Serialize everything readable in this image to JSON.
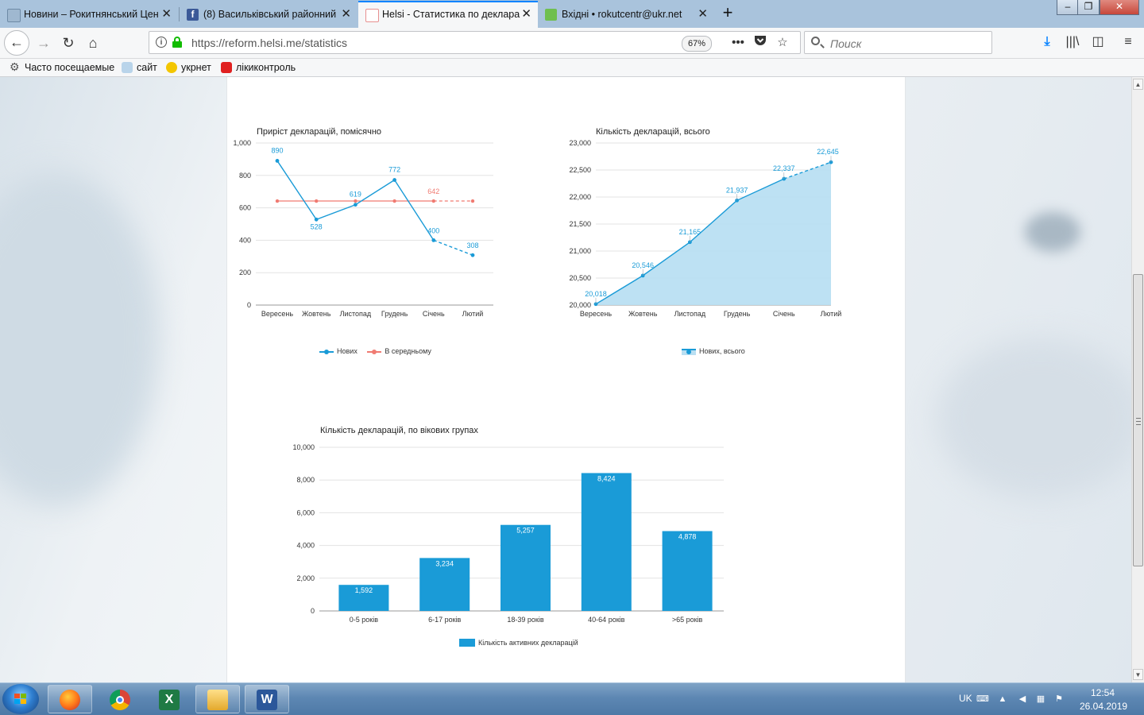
{
  "browser": {
    "tabs": [
      {
        "label": "Новини – Рокитнянський Цен",
        "active": false
      },
      {
        "label": "(8) Васильківський районний",
        "active": false
      },
      {
        "label": "Helsi - Статистика по деклара",
        "active": true
      },
      {
        "label": "Вхідні • rokutcentr@ukr.net",
        "active": false
      }
    ],
    "url": "https://reform.helsi.me/statistics",
    "zoom": "67%",
    "search_placeholder": "Поиск",
    "bookmarks": [
      "Часто посещаемые",
      "сайт",
      "укрнет",
      "лікиконтроль"
    ]
  },
  "charts": {
    "monthly": {
      "title": "Приріст декларацій, помісячно",
      "legend": [
        "Нових",
        "В середньому"
      ]
    },
    "total": {
      "title": "Кількість декларацій, всього",
      "legend": [
        "Нових, всього"
      ]
    },
    "age": {
      "title": "Кількість декларацій, по вікових групах",
      "legend": [
        "Кількість активних декларацій"
      ]
    }
  },
  "chart_data": [
    {
      "type": "line",
      "title": "Приріст декларацій, помісячно",
      "categories": [
        "Вересень",
        "Жовтень",
        "Листопад",
        "Грудень",
        "Січень",
        "Лютий"
      ],
      "series": [
        {
          "name": "Нових",
          "values": [
            890,
            528,
            619,
            772,
            400,
            308
          ],
          "color": "#1a9bd7"
        },
        {
          "name": "В середньому",
          "values": [
            642,
            642,
            642,
            642,
            642,
            642
          ],
          "color": "#f07b72"
        }
      ],
      "data_labels": {
        "Нових": [
          890,
          528,
          619,
          772,
          400,
          308
        ],
        "В середньому": [
          642
        ]
      },
      "ylim": [
        0,
        1000
      ],
      "yticks": [
        "0",
        "200",
        "400",
        "600",
        "800",
        "1,000"
      ],
      "grid": true,
      "legend_position": "bottom"
    },
    {
      "type": "area",
      "title": "Кількість декларацій, всього",
      "categories": [
        "Вересень",
        "Жовтень",
        "Листопад",
        "Грудень",
        "Січень",
        "Лютий"
      ],
      "series": [
        {
          "name": "Нових, всього",
          "values": [
            20018,
            20546,
            21165,
            21937,
            22337,
            22645
          ],
          "color": "#1a9bd7",
          "fill": "#b9dff2"
        }
      ],
      "data_labels": [
        "20,018",
        "20,546",
        "21,165",
        "21,937",
        "22,337",
        "22,645"
      ],
      "ylim": [
        20000,
        23000
      ],
      "yticks": [
        "20,000",
        "20,500",
        "21,000",
        "21,500",
        "22,000",
        "22,500",
        "23,000"
      ],
      "grid": true,
      "legend_position": "bottom"
    },
    {
      "type": "bar",
      "title": "Кількість декларацій, по вікових групах",
      "categories": [
        "0-5 років",
        "6-17 років",
        "18-39 років",
        "40-64 років",
        ">65 років"
      ],
      "series": [
        {
          "name": "Кількість активних декларацій",
          "values": [
            1592,
            3234,
            5257,
            8424,
            4878
          ],
          "color": "#1a9bd7"
        }
      ],
      "data_labels": [
        "1,592",
        "3,234",
        "5,257",
        "8,424",
        "4,878"
      ],
      "ylim": [
        0,
        10000
      ],
      "yticks": [
        "0",
        "2,000",
        "4,000",
        "6,000",
        "8,000",
        "10,000"
      ],
      "grid": true,
      "legend_position": "bottom"
    }
  ],
  "taskbar": {
    "apps": [
      "firefox-icon",
      "chrome-icon",
      "excel-icon",
      "explorer-icon",
      "word-icon"
    ],
    "language": "UK",
    "time": "12:54",
    "date": "26.04.2019"
  }
}
